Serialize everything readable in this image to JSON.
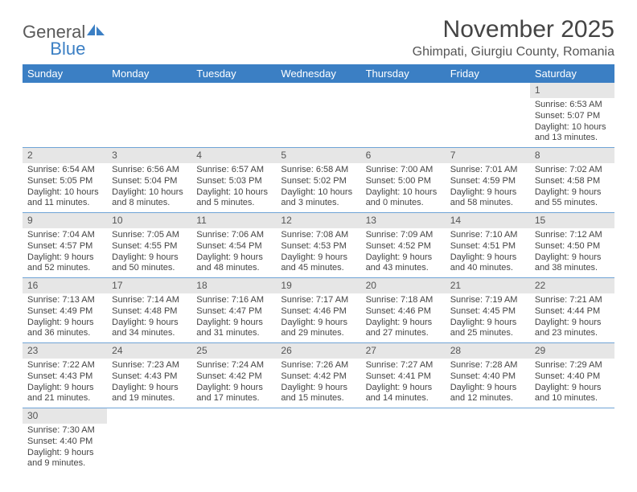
{
  "brand": {
    "part1": "General",
    "part2": "Blue"
  },
  "title": "November 2025",
  "location": "Ghimpati, Giurgiu County, Romania",
  "colors": {
    "header_bg": "#3b7fc4",
    "header_text": "#ffffff",
    "daynum_bg": "#e6e6e6",
    "row_divider": "#6fa3d6",
    "text": "#444444",
    "brand_gray": "#5a5a5a",
    "brand_blue": "#3b7fc4"
  },
  "weekdays": [
    "Sunday",
    "Monday",
    "Tuesday",
    "Wednesday",
    "Thursday",
    "Friday",
    "Saturday"
  ],
  "weeks": [
    [
      null,
      null,
      null,
      null,
      null,
      null,
      {
        "n": "1",
        "sr": "Sunrise: 6:53 AM",
        "ss": "Sunset: 5:07 PM",
        "d1": "Daylight: 10 hours",
        "d2": "and 13 minutes."
      }
    ],
    [
      {
        "n": "2",
        "sr": "Sunrise: 6:54 AM",
        "ss": "Sunset: 5:05 PM",
        "d1": "Daylight: 10 hours",
        "d2": "and 11 minutes."
      },
      {
        "n": "3",
        "sr": "Sunrise: 6:56 AM",
        "ss": "Sunset: 5:04 PM",
        "d1": "Daylight: 10 hours",
        "d2": "and 8 minutes."
      },
      {
        "n": "4",
        "sr": "Sunrise: 6:57 AM",
        "ss": "Sunset: 5:03 PM",
        "d1": "Daylight: 10 hours",
        "d2": "and 5 minutes."
      },
      {
        "n": "5",
        "sr": "Sunrise: 6:58 AM",
        "ss": "Sunset: 5:02 PM",
        "d1": "Daylight: 10 hours",
        "d2": "and 3 minutes."
      },
      {
        "n": "6",
        "sr": "Sunrise: 7:00 AM",
        "ss": "Sunset: 5:00 PM",
        "d1": "Daylight: 10 hours",
        "d2": "and 0 minutes."
      },
      {
        "n": "7",
        "sr": "Sunrise: 7:01 AM",
        "ss": "Sunset: 4:59 PM",
        "d1": "Daylight: 9 hours",
        "d2": "and 58 minutes."
      },
      {
        "n": "8",
        "sr": "Sunrise: 7:02 AM",
        "ss": "Sunset: 4:58 PM",
        "d1": "Daylight: 9 hours",
        "d2": "and 55 minutes."
      }
    ],
    [
      {
        "n": "9",
        "sr": "Sunrise: 7:04 AM",
        "ss": "Sunset: 4:57 PM",
        "d1": "Daylight: 9 hours",
        "d2": "and 52 minutes."
      },
      {
        "n": "10",
        "sr": "Sunrise: 7:05 AM",
        "ss": "Sunset: 4:55 PM",
        "d1": "Daylight: 9 hours",
        "d2": "and 50 minutes."
      },
      {
        "n": "11",
        "sr": "Sunrise: 7:06 AM",
        "ss": "Sunset: 4:54 PM",
        "d1": "Daylight: 9 hours",
        "d2": "and 48 minutes."
      },
      {
        "n": "12",
        "sr": "Sunrise: 7:08 AM",
        "ss": "Sunset: 4:53 PM",
        "d1": "Daylight: 9 hours",
        "d2": "and 45 minutes."
      },
      {
        "n": "13",
        "sr": "Sunrise: 7:09 AM",
        "ss": "Sunset: 4:52 PM",
        "d1": "Daylight: 9 hours",
        "d2": "and 43 minutes."
      },
      {
        "n": "14",
        "sr": "Sunrise: 7:10 AM",
        "ss": "Sunset: 4:51 PM",
        "d1": "Daylight: 9 hours",
        "d2": "and 40 minutes."
      },
      {
        "n": "15",
        "sr": "Sunrise: 7:12 AM",
        "ss": "Sunset: 4:50 PM",
        "d1": "Daylight: 9 hours",
        "d2": "and 38 minutes."
      }
    ],
    [
      {
        "n": "16",
        "sr": "Sunrise: 7:13 AM",
        "ss": "Sunset: 4:49 PM",
        "d1": "Daylight: 9 hours",
        "d2": "and 36 minutes."
      },
      {
        "n": "17",
        "sr": "Sunrise: 7:14 AM",
        "ss": "Sunset: 4:48 PM",
        "d1": "Daylight: 9 hours",
        "d2": "and 34 minutes."
      },
      {
        "n": "18",
        "sr": "Sunrise: 7:16 AM",
        "ss": "Sunset: 4:47 PM",
        "d1": "Daylight: 9 hours",
        "d2": "and 31 minutes."
      },
      {
        "n": "19",
        "sr": "Sunrise: 7:17 AM",
        "ss": "Sunset: 4:46 PM",
        "d1": "Daylight: 9 hours",
        "d2": "and 29 minutes."
      },
      {
        "n": "20",
        "sr": "Sunrise: 7:18 AM",
        "ss": "Sunset: 4:46 PM",
        "d1": "Daylight: 9 hours",
        "d2": "and 27 minutes."
      },
      {
        "n": "21",
        "sr": "Sunrise: 7:19 AM",
        "ss": "Sunset: 4:45 PM",
        "d1": "Daylight: 9 hours",
        "d2": "and 25 minutes."
      },
      {
        "n": "22",
        "sr": "Sunrise: 7:21 AM",
        "ss": "Sunset: 4:44 PM",
        "d1": "Daylight: 9 hours",
        "d2": "and 23 minutes."
      }
    ],
    [
      {
        "n": "23",
        "sr": "Sunrise: 7:22 AM",
        "ss": "Sunset: 4:43 PM",
        "d1": "Daylight: 9 hours",
        "d2": "and 21 minutes."
      },
      {
        "n": "24",
        "sr": "Sunrise: 7:23 AM",
        "ss": "Sunset: 4:43 PM",
        "d1": "Daylight: 9 hours",
        "d2": "and 19 minutes."
      },
      {
        "n": "25",
        "sr": "Sunrise: 7:24 AM",
        "ss": "Sunset: 4:42 PM",
        "d1": "Daylight: 9 hours",
        "d2": "and 17 minutes."
      },
      {
        "n": "26",
        "sr": "Sunrise: 7:26 AM",
        "ss": "Sunset: 4:42 PM",
        "d1": "Daylight: 9 hours",
        "d2": "and 15 minutes."
      },
      {
        "n": "27",
        "sr": "Sunrise: 7:27 AM",
        "ss": "Sunset: 4:41 PM",
        "d1": "Daylight: 9 hours",
        "d2": "and 14 minutes."
      },
      {
        "n": "28",
        "sr": "Sunrise: 7:28 AM",
        "ss": "Sunset: 4:40 PM",
        "d1": "Daylight: 9 hours",
        "d2": "and 12 minutes."
      },
      {
        "n": "29",
        "sr": "Sunrise: 7:29 AM",
        "ss": "Sunset: 4:40 PM",
        "d1": "Daylight: 9 hours",
        "d2": "and 10 minutes."
      }
    ],
    [
      {
        "n": "30",
        "sr": "Sunrise: 7:30 AM",
        "ss": "Sunset: 4:40 PM",
        "d1": "Daylight: 9 hours",
        "d2": "and 9 minutes."
      },
      null,
      null,
      null,
      null,
      null,
      null
    ]
  ]
}
